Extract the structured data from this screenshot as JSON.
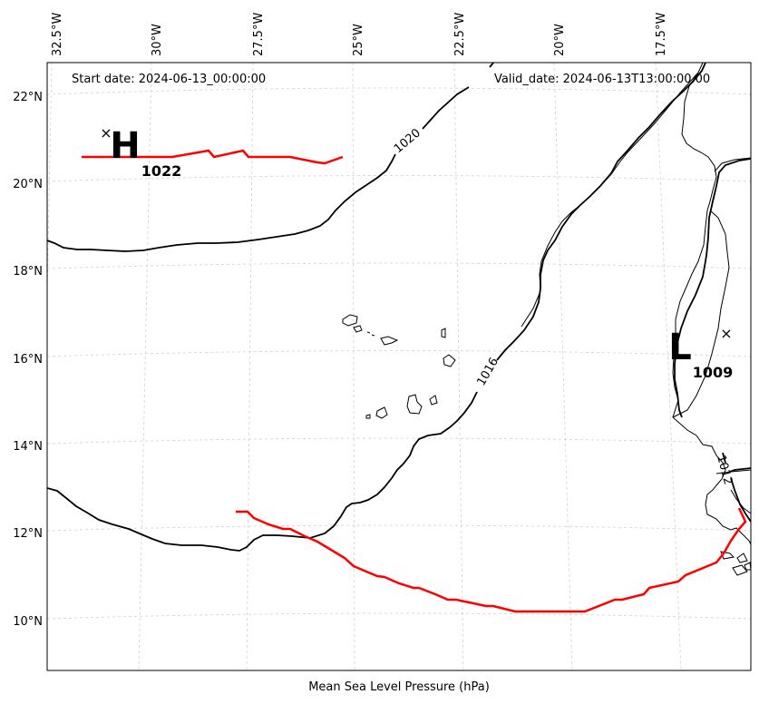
{
  "map": {
    "start_date": "Start date: 2024-06-13_00:00:00",
    "valid_date": "Valid_date: 2024-06-13T13:00:00.00",
    "xlabel": "Mean Sea Level Pressure (hPa)",
    "lon_labels": [
      "32.5°W",
      "30°W",
      "27.5°W",
      "25°W",
      "22.5°W",
      "20°W",
      "17.5°W"
    ],
    "lat_labels": [
      "22°N",
      "20°N",
      "18°N",
      "16°N",
      "14°N",
      "12°N",
      "10°N"
    ],
    "contour_labels": [
      "1020",
      "1016",
      "1012"
    ],
    "high": {
      "letter": "H",
      "value": "1022"
    },
    "low": {
      "letter": "L",
      "value": "1009"
    },
    "colors": {
      "contour": "#000000",
      "trough": "#ff0000",
      "grid": "#d0d0d0"
    }
  }
}
